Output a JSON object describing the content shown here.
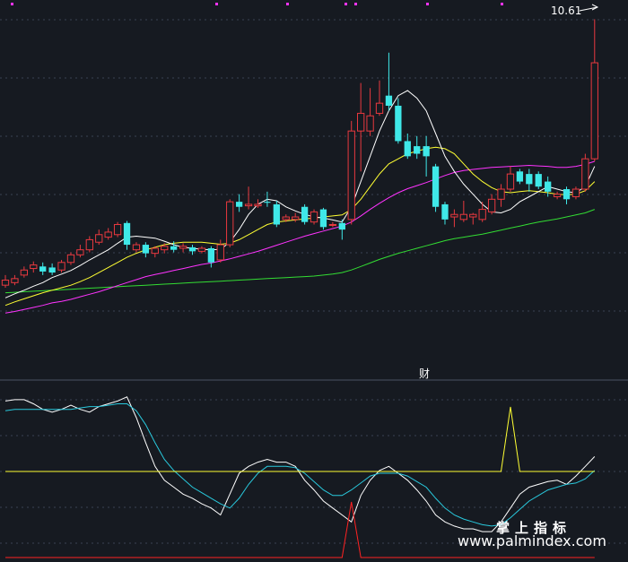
{
  "labels": {
    "peak_price": "10.61",
    "indicator_label": "财",
    "watermark_cn": "掌上指标",
    "watermark_url": "www.palmindex.com"
  },
  "colors": {
    "bg": "#161a21",
    "up": "#e8393f",
    "down": "#3fe8e8",
    "ma5": "#ffffff",
    "ma10": "#ffff33",
    "ma20": "#ff33ff",
    "ma60": "#33dd33",
    "grid": "#3a4252",
    "k_line": "#ffffff",
    "d_line": "#29c9dd",
    "signal_yellow": "#ffff33",
    "signal_red": "#ff2222",
    "magenta_marker": "#ff33ff"
  },
  "chart_data": [
    {
      "type": "candlestick",
      "ylim": [
        4.75,
        10.85
      ],
      "peak_label": "10.61",
      "grid": true,
      "candles": [
        [
          5.35,
          5.45,
          5.55,
          5.3
        ],
        [
          5.4,
          5.48,
          5.55,
          5.35
        ],
        [
          5.55,
          5.65,
          5.72,
          5.5
        ],
        [
          5.68,
          5.75,
          5.82,
          5.6
        ],
        [
          5.72,
          5.62,
          5.8,
          5.55
        ],
        [
          5.7,
          5.6,
          5.78,
          5.55
        ],
        [
          5.65,
          5.8,
          5.85,
          5.6
        ],
        [
          5.8,
          5.95,
          6.0,
          5.75
        ],
        [
          5.95,
          6.05,
          6.15,
          5.9
        ],
        [
          6.05,
          6.25,
          6.32,
          6.0
        ],
        [
          6.2,
          6.35,
          6.45,
          6.15
        ],
        [
          6.3,
          6.4,
          6.48,
          6.25
        ],
        [
          6.35,
          6.55,
          6.6,
          6.3
        ],
        [
          6.58,
          6.15,
          6.62,
          6.05
        ],
        [
          6.05,
          6.15,
          6.2,
          6.0
        ],
        [
          6.15,
          5.98,
          6.2,
          5.9
        ],
        [
          5.98,
          6.08,
          6.12,
          5.9
        ],
        [
          6.05,
          6.12,
          6.18,
          5.98
        ],
        [
          6.12,
          6.05,
          6.22,
          6.0
        ],
        [
          6.08,
          6.12,
          6.18,
          6.0
        ],
        [
          6.1,
          6.02,
          6.15,
          5.95
        ],
        [
          6.02,
          6.08,
          6.12,
          5.98
        ],
        [
          6.08,
          5.8,
          6.12,
          5.7
        ],
        [
          5.85,
          6.15,
          6.25,
          5.8
        ],
        [
          6.15,
          7.0,
          7.05,
          6.1
        ],
        [
          7.0,
          6.9,
          7.15,
          6.8
        ],
        [
          6.92,
          6.95,
          7.3,
          6.85
        ],
        [
          6.92,
          6.95,
          7.05,
          6.88
        ],
        [
          7.0,
          6.98,
          7.2,
          6.9
        ],
        [
          6.95,
          6.55,
          7.02,
          6.5
        ],
        [
          6.65,
          6.7,
          6.75,
          6.6
        ],
        [
          6.65,
          6.7,
          6.78,
          6.6
        ],
        [
          6.9,
          6.6,
          6.95,
          6.55
        ],
        [
          6.6,
          6.8,
          6.85,
          6.55
        ],
        [
          6.85,
          6.5,
          6.88,
          6.45
        ],
        [
          6.55,
          6.55,
          6.6,
          6.5
        ],
        [
          6.58,
          6.45,
          6.65,
          6.25
        ],
        [
          6.65,
          8.4,
          8.6,
          6.55
        ],
        [
          8.4,
          8.75,
          9.35,
          7.6
        ],
        [
          8.4,
          8.7,
          9.25,
          8.3
        ],
        [
          8.75,
          8.95,
          9.4,
          8.7
        ],
        [
          9.1,
          8.9,
          9.95,
          8.8
        ],
        [
          8.9,
          8.2,
          9.05,
          8.15
        ],
        [
          8.2,
          7.9,
          8.35,
          7.85
        ],
        [
          8.1,
          7.95,
          8.3,
          7.85
        ],
        [
          8.1,
          7.9,
          8.3,
          7.5
        ],
        [
          7.7,
          6.9,
          7.75,
          6.8
        ],
        [
          6.95,
          6.65,
          7.0,
          6.55
        ],
        [
          6.7,
          6.75,
          6.85,
          6.5
        ],
        [
          6.65,
          6.75,
          7.02,
          6.6
        ],
        [
          6.7,
          6.75,
          6.78,
          6.55
        ],
        [
          6.65,
          6.85,
          7.0,
          6.6
        ],
        [
          6.8,
          7.05,
          7.15,
          6.75
        ],
        [
          7.05,
          7.25,
          7.35,
          6.9
        ],
        [
          7.25,
          7.55,
          7.7,
          7.2
        ],
        [
          7.6,
          7.4,
          7.65,
          7.35
        ],
        [
          7.55,
          7.35,
          7.65,
          7.2
        ],
        [
          7.55,
          7.3,
          7.6,
          7.25
        ],
        [
          7.4,
          7.2,
          7.5,
          7.1
        ],
        [
          7.1,
          7.15,
          7.2,
          7.05
        ],
        [
          7.25,
          7.05,
          7.3,
          6.95
        ],
        [
          7.1,
          7.25,
          7.3,
          7.05
        ],
        [
          7.25,
          7.85,
          7.95,
          7.2
        ],
        [
          7.85,
          9.75,
          10.61,
          7.8
        ]
      ],
      "ma5": [
        5.1,
        5.18,
        5.25,
        5.33,
        5.4,
        5.5,
        5.57,
        5.64,
        5.74,
        5.85,
        5.95,
        6.05,
        6.18,
        6.3,
        6.32,
        6.3,
        6.28,
        6.22,
        6.15,
        6.1,
        6.08,
        6.06,
        6.05,
        6.06,
        6.2,
        6.45,
        6.75,
        6.95,
        7.05,
        7.02,
        6.9,
        6.82,
        6.75,
        6.7,
        6.68,
        6.64,
        6.6,
        6.9,
        7.4,
        7.9,
        8.4,
        8.8,
        9.1,
        9.2,
        9.05,
        8.8,
        8.35,
        7.9,
        7.6,
        7.35,
        7.15,
        6.95,
        6.8,
        6.78,
        6.85,
        7.0,
        7.1,
        7.2,
        7.3,
        7.25,
        7.2,
        7.18,
        7.3,
        7.7
      ],
      "ma10": [
        4.95,
        5.02,
        5.08,
        5.14,
        5.2,
        5.25,
        5.3,
        5.35,
        5.42,
        5.5,
        5.6,
        5.7,
        5.8,
        5.9,
        5.98,
        6.05,
        6.1,
        6.15,
        6.18,
        6.2,
        6.2,
        6.2,
        6.18,
        6.16,
        6.18,
        6.25,
        6.35,
        6.45,
        6.55,
        6.6,
        6.62,
        6.64,
        6.66,
        6.68,
        6.7,
        6.72,
        6.74,
        6.85,
        7.05,
        7.3,
        7.55,
        7.75,
        7.85,
        7.95,
        8.0,
        8.05,
        8.08,
        8.05,
        7.95,
        7.75,
        7.55,
        7.4,
        7.28,
        7.2,
        7.18,
        7.2,
        7.22,
        7.2,
        7.18,
        7.15,
        7.14,
        7.15,
        7.22,
        7.4
      ],
      "ma20": [
        4.8,
        4.83,
        4.87,
        4.91,
        4.95,
        5.0,
        5.03,
        5.07,
        5.12,
        5.17,
        5.22,
        5.28,
        5.34,
        5.4,
        5.46,
        5.52,
        5.56,
        5.6,
        5.64,
        5.68,
        5.72,
        5.76,
        5.79,
        5.83,
        5.87,
        5.92,
        5.97,
        6.02,
        6.08,
        6.14,
        6.2,
        6.26,
        6.32,
        6.37,
        6.42,
        6.47,
        6.52,
        6.6,
        6.72,
        6.85,
        6.97,
        7.08,
        7.18,
        7.26,
        7.32,
        7.38,
        7.45,
        7.52,
        7.58,
        7.62,
        7.64,
        7.66,
        7.68,
        7.69,
        7.7,
        7.71,
        7.72,
        7.71,
        7.7,
        7.68,
        7.68,
        7.7,
        7.74,
        7.8
      ],
      "ma60": [
        5.2,
        5.21,
        5.22,
        5.23,
        5.24,
        5.25,
        5.26,
        5.27,
        5.28,
        5.29,
        5.3,
        5.31,
        5.32,
        5.33,
        5.34,
        5.35,
        5.36,
        5.37,
        5.38,
        5.39,
        5.4,
        5.41,
        5.42,
        5.43,
        5.44,
        5.45,
        5.46,
        5.47,
        5.48,
        5.49,
        5.5,
        5.51,
        5.52,
        5.53,
        5.55,
        5.57,
        5.6,
        5.65,
        5.72,
        5.79,
        5.86,
        5.92,
        5.98,
        6.03,
        6.08,
        6.13,
        6.18,
        6.23,
        6.27,
        6.3,
        6.33,
        6.36,
        6.4,
        6.44,
        6.48,
        6.52,
        6.56,
        6.6,
        6.63,
        6.66,
        6.7,
        6.74,
        6.78,
        6.85
      ]
    },
    {
      "type": "line",
      "ylim": [
        0,
        100
      ],
      "grid": true,
      "series": [
        {
          "values": [
            92,
            93,
            93,
            90,
            86,
            84,
            86,
            89,
            86,
            84,
            88,
            90,
            92,
            95,
            80,
            62,
            45,
            35,
            30,
            25,
            22,
            18,
            15,
            10,
            25,
            40,
            45,
            48,
            50,
            48,
            48,
            45,
            35,
            28,
            20,
            15,
            10,
            5,
            24,
            35,
            42,
            45,
            40,
            35,
            28,
            20,
            10,
            5,
            2,
            0,
            0,
            -2,
            -2,
            5,
            15,
            25,
            30,
            32,
            34,
            35,
            32,
            38,
            45,
            52
          ]
        },
        {
          "values": [
            85,
            86,
            86,
            86,
            86,
            86,
            86,
            86,
            87,
            88,
            88,
            89,
            90,
            90,
            85,
            75,
            62,
            50,
            42,
            36,
            30,
            26,
            22,
            18,
            15,
            22,
            32,
            40,
            45,
            45,
            45,
            44,
            40,
            34,
            28,
            24,
            24,
            28,
            33,
            38,
            40,
            40,
            40,
            38,
            34,
            30,
            22,
            15,
            10,
            7,
            5,
            3,
            2,
            3,
            8,
            14,
            20,
            24,
            28,
            30,
            32,
            33,
            36,
            42
          ]
        },
        {
          "values": [
            0,
            0,
            0,
            0,
            0,
            0,
            0,
            0,
            0,
            0,
            0,
            0,
            0,
            0,
            0,
            0,
            0,
            0,
            0,
            0,
            0,
            0,
            0,
            0,
            0,
            0,
            0,
            0,
            0,
            0,
            0,
            0,
            0,
            0,
            0,
            0,
            0,
            0,
            0,
            0,
            0,
            0,
            0,
            0,
            0,
            0,
            0,
            0,
            0,
            0,
            0,
            0,
            0,
            0,
            72,
            0,
            0,
            0,
            0,
            0,
            0,
            0,
            0,
            0
          ]
        },
        {
          "values": [
            0,
            0,
            0,
            0,
            0,
            0,
            0,
            0,
            0,
            0,
            0,
            0,
            0,
            0,
            0,
            0,
            0,
            0,
            0,
            0,
            0,
            0,
            0,
            0,
            0,
            0,
            0,
            0,
            0,
            0,
            0,
            0,
            0,
            0,
            0,
            0,
            0,
            62,
            0,
            0,
            0,
            0,
            0,
            0,
            0,
            0,
            0,
            0,
            0,
            0,
            0,
            0,
            0,
            0,
            0,
            0,
            0,
            0,
            0,
            0,
            0,
            0,
            0,
            0
          ]
        }
      ]
    }
  ]
}
